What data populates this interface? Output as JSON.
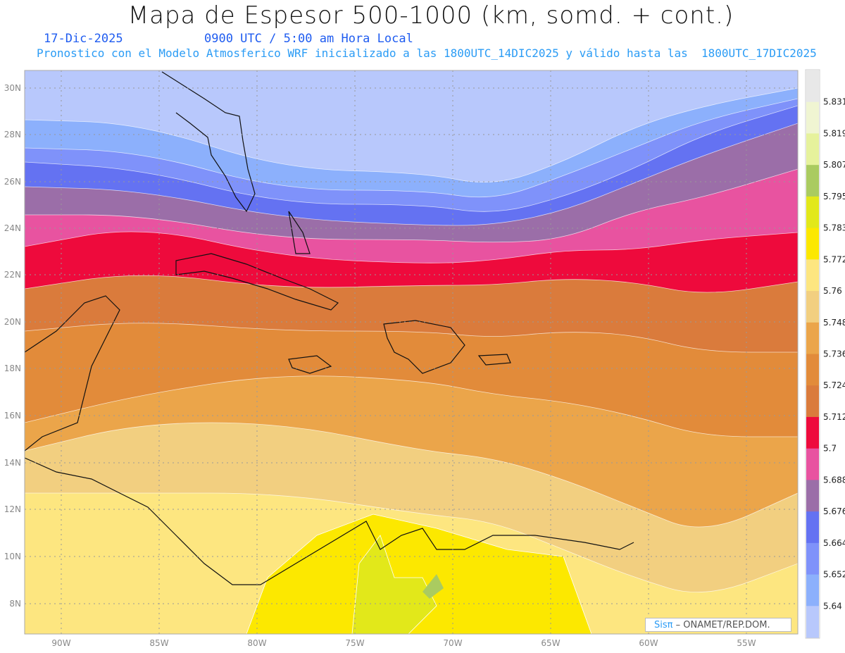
{
  "header": {
    "title": "Mapa de Espesor 500-1000 (km, somd. + cont.)",
    "date": "17-Dic-2025",
    "time": "0900 UTC / 5:00 am Hora Local",
    "description": "Pronostico con el Modelo Atmosferico WRF inicializado a las 1800UTC_14DIC2025 y válido hasta las  1800UTC_17DIC2025"
  },
  "axes": {
    "lat_labels": [
      "30N",
      "28N",
      "26N",
      "24N",
      "22N",
      "20N",
      "18N",
      "16N",
      "14N",
      "12N",
      "10N",
      "8N"
    ],
    "lon_labels": [
      "90W",
      "85W",
      "80W",
      "75W",
      "70W",
      "65W",
      "60W",
      "55W"
    ]
  },
  "colorbar": {
    "levels": [
      "5.831",
      "5.819",
      "5.807",
      "5.795",
      "5.783",
      "5.772",
      "5.76",
      "5.748",
      "5.736",
      "5.724",
      "5.712",
      "5.7",
      "5.688",
      "5.676",
      "5.664",
      "5.652",
      "5.64"
    ],
    "colors": [
      "#e8e8e8",
      "#f0f5d2",
      "#e6f29c",
      "#aacb60",
      "#e2e81a",
      "#fce800",
      "#fde680",
      "#f2cf80",
      "#eba54a",
      "#e28b3a",
      "#da7b3c",
      "#ee0a3c",
      "#e853a0",
      "#9b6ea8",
      "#6472f2",
      "#7f92fa",
      "#8cb0fc",
      "#b8c8fc"
    ]
  },
  "credit": {
    "logo": "Sisπ",
    "text": "– ONAMET/REP.DOM."
  }
}
